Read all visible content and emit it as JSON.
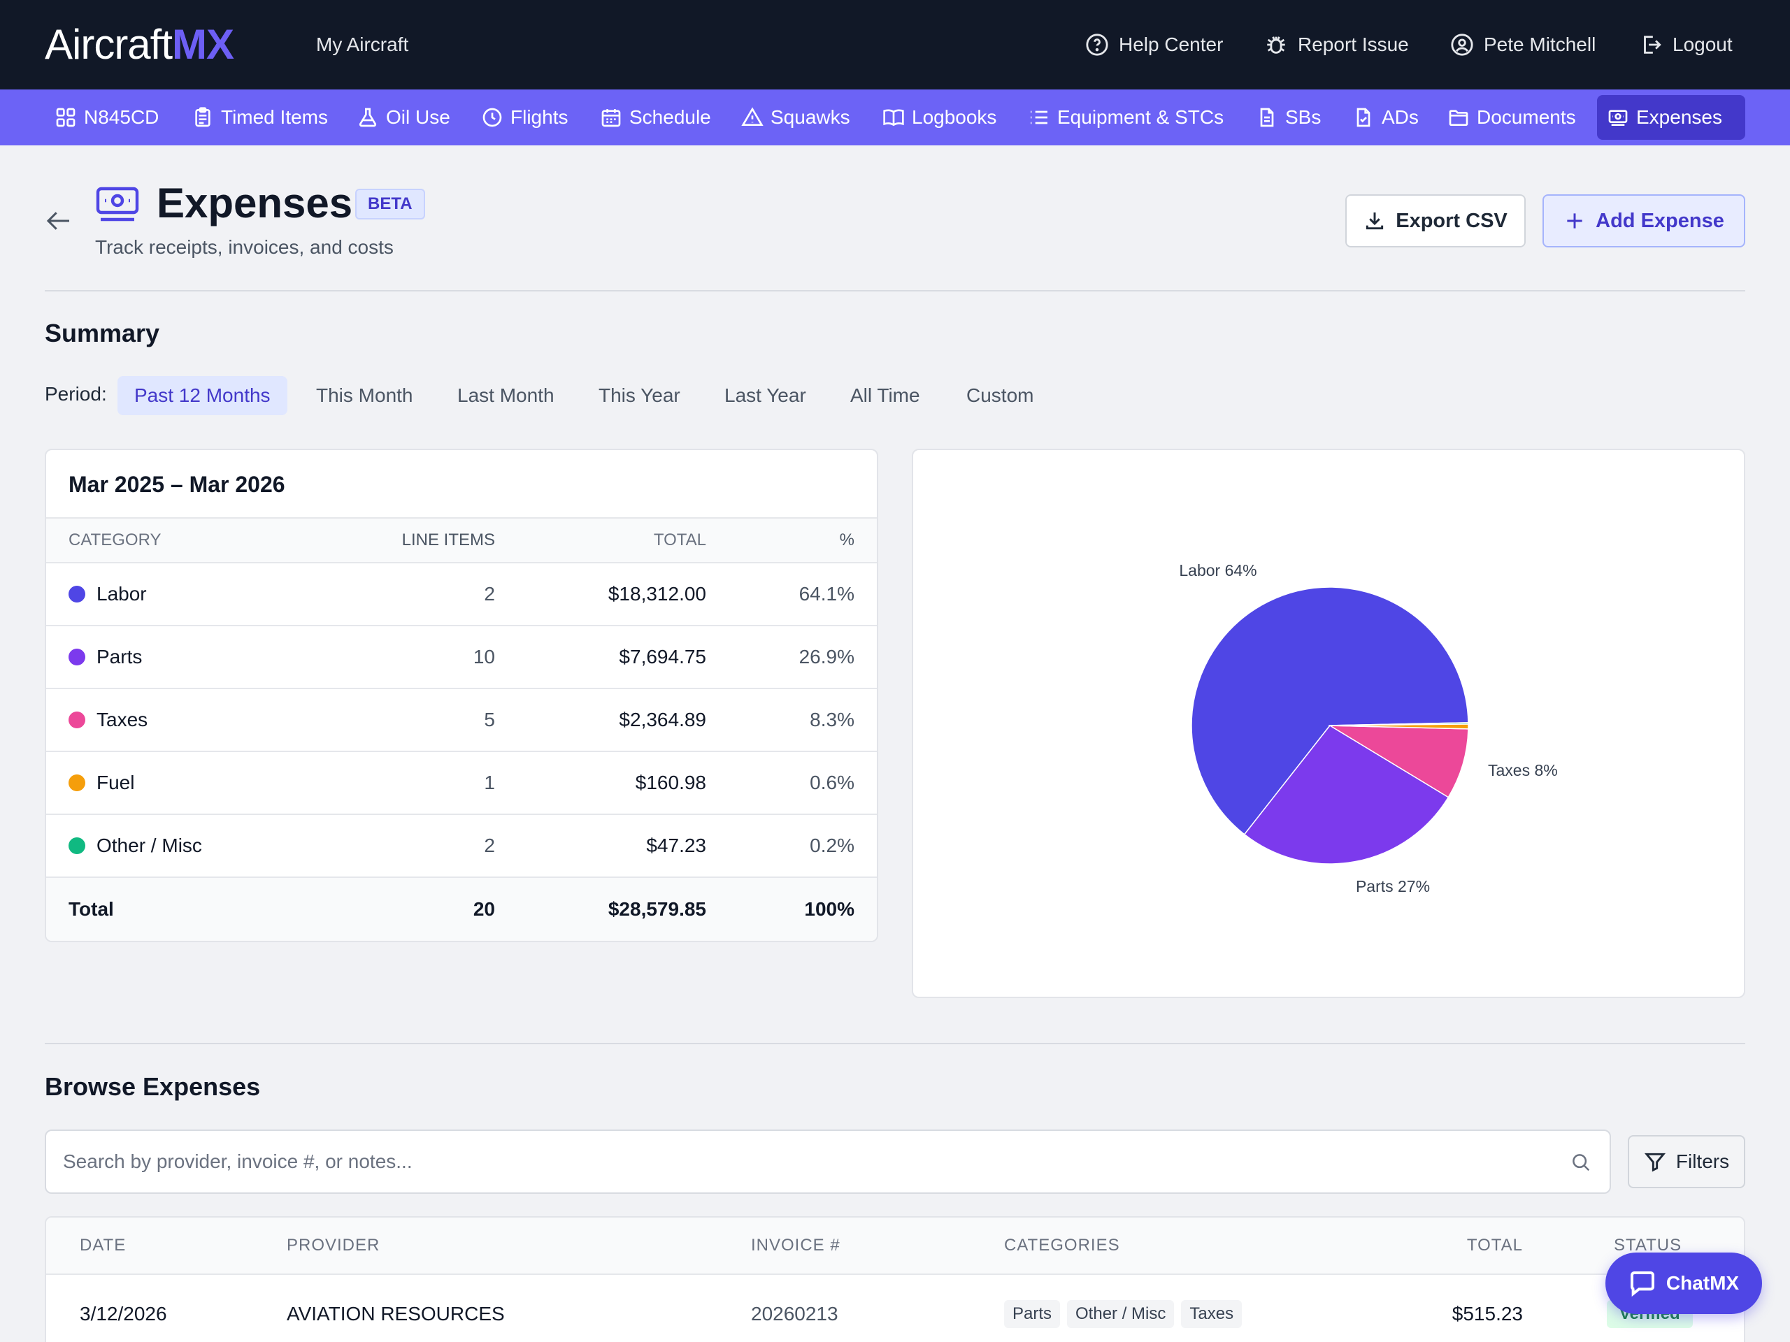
{
  "app": {
    "logo_main": "Aircraft",
    "logo_accent": "MX",
    "top_nav": {
      "my_aircraft": "My Aircraft",
      "help": "Help Center",
      "report": "Report Issue",
      "user": "Pete Mitchell",
      "logout": "Logout"
    }
  },
  "nav": [
    {
      "label": "N845CD",
      "icon": "grid-icon"
    },
    {
      "label": "Timed Items",
      "icon": "clipboard-icon"
    },
    {
      "label": "Oil Use",
      "icon": "flask-icon"
    },
    {
      "label": "Flights",
      "icon": "clock-icon"
    },
    {
      "label": "Schedule",
      "icon": "calendar-icon"
    },
    {
      "label": "Squawks",
      "icon": "warning-icon"
    },
    {
      "label": "Logbooks",
      "icon": "book-icon"
    },
    {
      "label": "Equipment & STCs",
      "icon": "list-icon"
    },
    {
      "label": "SBs",
      "icon": "document-icon"
    },
    {
      "label": "ADs",
      "icon": "document-check-icon"
    },
    {
      "label": "Documents",
      "icon": "folder-icon"
    },
    {
      "label": "Expenses",
      "icon": "cash-icon",
      "active": true
    }
  ],
  "page": {
    "title": "Expenses",
    "badge": "BETA",
    "subtitle": "Track receipts, invoices, and costs",
    "export_label": "Export CSV",
    "add_label": "Add Expense"
  },
  "summary": {
    "title": "Summary",
    "period_label": "Period:",
    "periods": [
      "Past 12 Months",
      "This Month",
      "Last Month",
      "This Year",
      "Last Year",
      "All Time",
      "Custom"
    ],
    "active_period": 0,
    "range": "Mar 2025 – Mar 2026",
    "columns": {
      "category": "CATEGORY",
      "items": "LINE ITEMS",
      "total": "TOTAL",
      "pct": "%"
    },
    "rows": [
      {
        "category": "Labor",
        "items": "2",
        "total": "$18,312.00",
        "pct": "64.1%",
        "color": "#4f46e5"
      },
      {
        "category": "Parts",
        "items": "10",
        "total": "$7,694.75",
        "pct": "26.9%",
        "color": "#7c3aed"
      },
      {
        "category": "Taxes",
        "items": "5",
        "total": "$2,364.89",
        "pct": "8.3%",
        "color": "#ec4899"
      },
      {
        "category": "Fuel",
        "items": "1",
        "total": "$160.98",
        "pct": "0.6%",
        "color": "#f59e0b"
      },
      {
        "category": "Other / Misc",
        "items": "2",
        "total": "$47.23",
        "pct": "0.2%",
        "color": "#10b981"
      }
    ],
    "total_row": {
      "label": "Total",
      "items": "20",
      "total": "$28,579.85",
      "pct": "100%"
    }
  },
  "chart_data": {
    "type": "pie",
    "labels": [
      "Labor",
      "Parts",
      "Taxes",
      "Fuel",
      "Other / Misc"
    ],
    "values": [
      18312.0,
      7694.75,
      2364.89,
      160.98,
      47.23
    ],
    "colors": [
      "#4f46e5",
      "#7c3aed",
      "#ec4899",
      "#f59e0b",
      "#10b981"
    ],
    "slice_labels": [
      "Labor 64%",
      "Parts 27%",
      "Taxes 8%",
      "",
      ""
    ]
  },
  "browse": {
    "title": "Browse Expenses",
    "search_placeholder": "Search by provider, invoice #, or notes...",
    "filters_label": "Filters",
    "columns": {
      "date": "DATE",
      "provider": "PROVIDER",
      "invoice": "INVOICE #",
      "categories": "CATEGORIES",
      "total": "TOTAL",
      "status": "STATUS"
    },
    "rows": [
      {
        "date": "3/12/2026",
        "provider": "AVIATION RESOURCES",
        "invoice": "20260213",
        "categories": [
          "Parts",
          "Other / Misc",
          "Taxes"
        ],
        "total": "$515.23",
        "status": "Verified"
      }
    ]
  },
  "chat": {
    "label": "ChatMX"
  }
}
